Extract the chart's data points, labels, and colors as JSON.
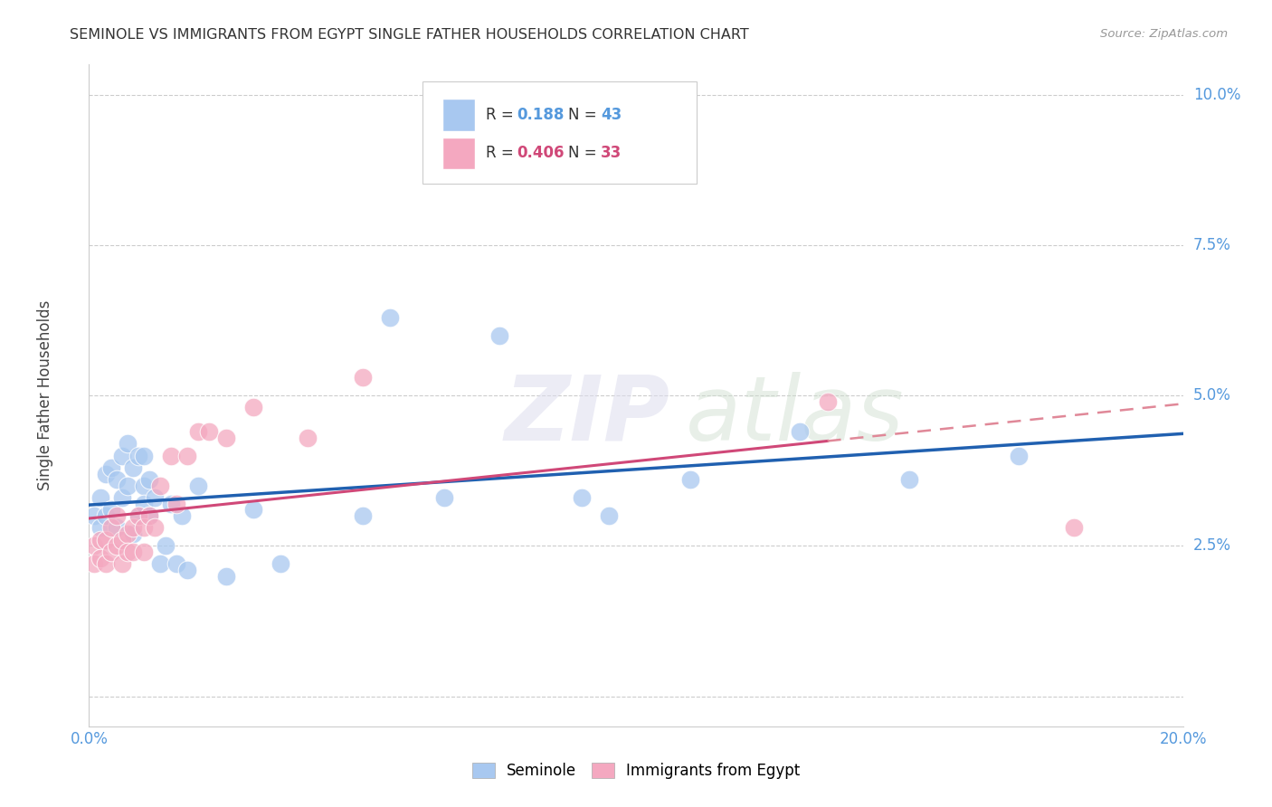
{
  "title": "SEMINOLE VS IMMIGRANTS FROM EGYPT SINGLE FATHER HOUSEHOLDS CORRELATION CHART",
  "source": "Source: ZipAtlas.com",
  "ylabel": "Single Father Households",
  "xlim": [
    0.0,
    0.2
  ],
  "ylim": [
    -0.005,
    0.105
  ],
  "yticks": [
    0.0,
    0.025,
    0.05,
    0.075,
    0.1
  ],
  "xticks": [
    0.0,
    0.05,
    0.1,
    0.15,
    0.2
  ],
  "blue_color": "#A8C8F0",
  "pink_color": "#F4A8C0",
  "blue_line_color": "#2060B0",
  "pink_line_color": "#D04878",
  "pink_dash_color": "#E08898",
  "grid_color": "#CCCCCC",
  "background_color": "#FFFFFF",
  "seminole_x": [
    0.001,
    0.002,
    0.002,
    0.003,
    0.003,
    0.004,
    0.004,
    0.005,
    0.005,
    0.006,
    0.006,
    0.007,
    0.007,
    0.008,
    0.008,
    0.009,
    0.009,
    0.01,
    0.01,
    0.01,
    0.011,
    0.011,
    0.012,
    0.013,
    0.014,
    0.015,
    0.016,
    0.017,
    0.018,
    0.02,
    0.025,
    0.03,
    0.035,
    0.05,
    0.055,
    0.065,
    0.075,
    0.09,
    0.095,
    0.11,
    0.13,
    0.15,
    0.17
  ],
  "seminole_y": [
    0.03,
    0.033,
    0.028,
    0.037,
    0.03,
    0.038,
    0.031,
    0.036,
    0.028,
    0.04,
    0.033,
    0.042,
    0.035,
    0.038,
    0.027,
    0.04,
    0.03,
    0.04,
    0.035,
    0.032,
    0.036,
    0.03,
    0.033,
    0.022,
    0.025,
    0.032,
    0.022,
    0.03,
    0.021,
    0.035,
    0.02,
    0.031,
    0.022,
    0.03,
    0.063,
    0.033,
    0.06,
    0.033,
    0.03,
    0.036,
    0.044,
    0.036,
    0.04
  ],
  "egypt_x": [
    0.001,
    0.001,
    0.002,
    0.002,
    0.003,
    0.003,
    0.004,
    0.004,
    0.005,
    0.005,
    0.006,
    0.006,
    0.007,
    0.007,
    0.008,
    0.008,
    0.009,
    0.01,
    0.01,
    0.011,
    0.012,
    0.013,
    0.015,
    0.016,
    0.018,
    0.02,
    0.022,
    0.025,
    0.03,
    0.04,
    0.05,
    0.135,
    0.18
  ],
  "egypt_y": [
    0.025,
    0.022,
    0.026,
    0.023,
    0.026,
    0.022,
    0.028,
    0.024,
    0.025,
    0.03,
    0.026,
    0.022,
    0.027,
    0.024,
    0.028,
    0.024,
    0.03,
    0.028,
    0.024,
    0.03,
    0.028,
    0.035,
    0.04,
    0.032,
    0.04,
    0.044,
    0.044,
    0.043,
    0.048,
    0.043,
    0.053,
    0.049,
    0.028
  ],
  "watermark_zip": "ZIP",
  "watermark_atlas": "atlas"
}
